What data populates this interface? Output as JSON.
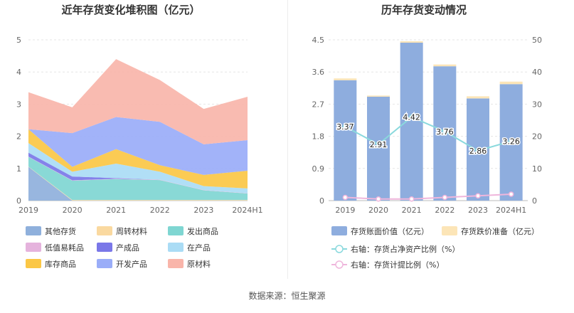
{
  "source_label": "数据来源：恒生聚源",
  "chart_data": [
    {
      "type": "area",
      "stacked": true,
      "title": "近年存货变化堆积图（亿元）",
      "categories": [
        "2019",
        "2020",
        "2021",
        "2022",
        "2023",
        "2024H1"
      ],
      "ylim": [
        0,
        5
      ],
      "yticks": [
        0,
        1,
        2,
        3,
        4,
        5
      ],
      "grid": true,
      "legend_position": "bottom",
      "series": [
        {
          "name": "其他存货",
          "color": "#8fb0dc",
          "values": [
            1.05,
            0.0,
            0.0,
            0.0,
            0.0,
            0.0
          ]
        },
        {
          "name": "周转材料",
          "color": "#fad9a0",
          "values": [
            0.01,
            0.02,
            0.02,
            0.02,
            0.02,
            0.02
          ]
        },
        {
          "name": "发出商品",
          "color": "#7fd6d2",
          "values": [
            0.3,
            0.6,
            0.65,
            0.62,
            0.3,
            0.2
          ]
        },
        {
          "name": "低值易耗品",
          "color": "#e5b3dd",
          "values": [
            0.01,
            0.01,
            0.01,
            0.01,
            0.01,
            0.01
          ]
        },
        {
          "name": "产成品",
          "color": "#7a77e8",
          "values": [
            0.12,
            0.12,
            0.02,
            0.0,
            0.0,
            0.0
          ]
        },
        {
          "name": "在产品",
          "color": "#aadcf5",
          "values": [
            0.3,
            0.15,
            0.45,
            0.25,
            0.12,
            0.15
          ]
        },
        {
          "name": "库存商品",
          "color": "#fbc745",
          "values": [
            0.43,
            0.15,
            0.45,
            0.2,
            0.35,
            0.55
          ]
        },
        {
          "name": "开发产品",
          "color": "#9aadf8",
          "values": [
            0.0,
            1.05,
            1.0,
            1.35,
            0.95,
            0.95
          ]
        },
        {
          "name": "原材料",
          "color": "#f9b5aa",
          "values": [
            1.15,
            0.8,
            1.8,
            1.3,
            1.1,
            1.35
          ]
        }
      ]
    },
    {
      "type": "bar",
      "title": "历年存货变动情况",
      "categories": [
        "2019",
        "2020",
        "2021",
        "2022",
        "2023",
        "2024H1"
      ],
      "ylim_left": [
        0,
        4.5
      ],
      "yticks_left": [
        "0",
        "0.9",
        "1.8",
        "2.7",
        "3.6",
        "4.5"
      ],
      "ylim_right": [
        0,
        50
      ],
      "yticks_right": [
        "0",
        "10",
        "20",
        "30",
        "40",
        "50"
      ],
      "grid": true,
      "legend_position": "bottom",
      "data_labels": [
        "3.37",
        "2.91",
        "4.42",
        "3.76",
        "2.86",
        "3.26"
      ],
      "series": [
        {
          "name": "存货账面价值（亿元）",
          "kind": "bar",
          "axis": "left",
          "color": "#8eadde",
          "values": [
            3.37,
            2.91,
            4.42,
            3.76,
            2.86,
            3.26
          ]
        },
        {
          "name": "存货跌价准备（亿元）",
          "kind": "bar-stack",
          "axis": "left",
          "color": "#fce5b7",
          "values": [
            0.05,
            0.03,
            0.04,
            0.05,
            0.06,
            0.07
          ]
        },
        {
          "name": "右轴：存货占净资产比例（%）",
          "kind": "line",
          "axis": "right",
          "color": "#8ad9dd",
          "values": [
            23,
            17.5,
            26,
            21.5,
            15.5,
            18.5
          ]
        },
        {
          "name": "右轴：存货计提比例（%）",
          "kind": "line",
          "axis": "right",
          "color": "#efb6dc",
          "values": [
            1.0,
            0.5,
            0.5,
            1.0,
            1.5,
            2.0
          ]
        }
      ]
    }
  ]
}
